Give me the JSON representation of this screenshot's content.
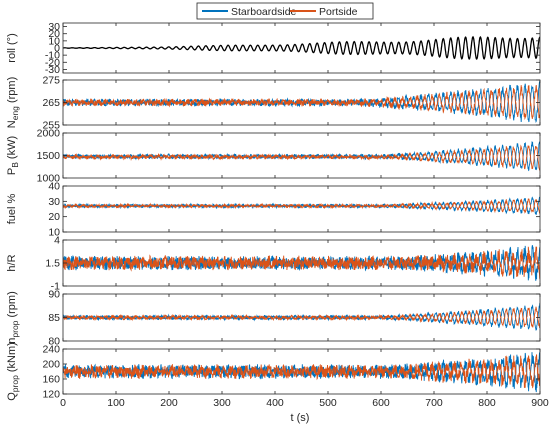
{
  "chart_data": {
    "type": "line",
    "xlabel": "t (s)",
    "xlim": [
      0,
      900
    ],
    "xticks": [
      0,
      100,
      200,
      300,
      400,
      500,
      600,
      700,
      800,
      900
    ],
    "legend": {
      "placement": "top-center",
      "entries": [
        {
          "name": "Starboardside",
          "color": "#0072BD"
        },
        {
          "name": "Portside",
          "color": "#D95319"
        }
      ]
    },
    "panels": [
      {
        "id": "roll",
        "ylabel": {
          "main": "roll (°)",
          "sub": ""
        },
        "ylim": [
          -35,
          35
        ],
        "yticks": [
          -30,
          -20,
          -10,
          0,
          10,
          20,
          30
        ],
        "series": [
          {
            "color": "#000000",
            "mean": 0,
            "amp_start": 0.3,
            "amp_end": 20,
            "grow_from": 0,
            "period_s": 14,
            "noise": 0
          }
        ]
      },
      {
        "id": "neng",
        "ylabel": {
          "main": "N",
          "sub": "eng",
          "after": " (rpm)"
        },
        "ylim": [
          255,
          275
        ],
        "yticks": [
          255,
          265,
          275
        ],
        "series": [
          {
            "color": "#0072BD",
            "mean": 265,
            "amp_start": 0.5,
            "amp_end": 8,
            "grow_from": 550,
            "period_s": 14,
            "noise": 1.2,
            "phase": 0
          },
          {
            "color": "#D95319",
            "mean": 265,
            "amp_start": 0.5,
            "amp_end": 7,
            "grow_from": 550,
            "period_s": 14,
            "noise": 1.2,
            "phase": 3.14
          }
        ]
      },
      {
        "id": "pb",
        "ylabel": {
          "main": "P",
          "sub": "B",
          "after": " (kW)"
        },
        "ylim": [
          1000,
          2000
        ],
        "yticks": [
          1000,
          1500,
          2000
        ],
        "series": [
          {
            "color": "#0072BD",
            "mean": 1480,
            "amp_start": 20,
            "amp_end": 300,
            "grow_from": 600,
            "period_s": 14,
            "noise": 35,
            "phase": 0
          },
          {
            "color": "#D95319",
            "mean": 1470,
            "amp_start": 20,
            "amp_end": 250,
            "grow_from": 600,
            "period_s": 14,
            "noise": 35,
            "phase": 3.14
          }
        ]
      },
      {
        "id": "fuel",
        "ylabel": {
          "main": "fuel %",
          "sub": ""
        },
        "ylim": [
          10,
          40
        ],
        "yticks": [
          10,
          20,
          30,
          40
        ],
        "series": [
          {
            "color": "#0072BD",
            "mean": 27,
            "amp_start": 0.5,
            "amp_end": 5,
            "grow_from": 600,
            "period_s": 14,
            "noise": 0.7,
            "phase": 0
          },
          {
            "color": "#D95319",
            "mean": 27,
            "amp_start": 0.5,
            "amp_end": 4,
            "grow_from": 600,
            "period_s": 14,
            "noise": 0.7,
            "phase": 3.14
          }
        ]
      },
      {
        "id": "hr",
        "ylabel": {
          "main": "h/R",
          "sub": ""
        },
        "ylim": [
          -1,
          4
        ],
        "yticks": [
          -1,
          1.5,
          4
        ],
        "yticklabels": [
          "-1",
          "1.5",
          "4"
        ],
        "series": [
          {
            "color": "#0072BD",
            "mean": 1.5,
            "amp_start": 0.2,
            "amp_end": 1.3,
            "grow_from": 650,
            "period_s": 14,
            "noise": 0.6,
            "phase": 0
          },
          {
            "color": "#D95319",
            "mean": 1.5,
            "amp_start": 0.2,
            "amp_end": 1.1,
            "grow_from": 650,
            "period_s": 14,
            "noise": 0.6,
            "phase": 3.14
          }
        ]
      },
      {
        "id": "nprop",
        "ylabel": {
          "main": "n",
          "sub": "prop",
          "after": " (rpm)"
        },
        "ylim": [
          80,
          90
        ],
        "yticks": [
          80,
          85,
          90
        ],
        "series": [
          {
            "color": "#0072BD",
            "mean": 85,
            "amp_start": 0.2,
            "amp_end": 2.5,
            "grow_from": 600,
            "period_s": 14,
            "noise": 0.3,
            "phase": 0
          },
          {
            "color": "#D95319",
            "mean": 85,
            "amp_start": 0.2,
            "amp_end": 2.0,
            "grow_from": 600,
            "period_s": 14,
            "noise": 0.3,
            "phase": 3.14
          }
        ]
      },
      {
        "id": "qprop",
        "ylabel": {
          "main": "Q",
          "sub": "prop",
          "after": " (kNm)"
        },
        "ylim": [
          120,
          240
        ],
        "yticks": [
          120,
          160,
          200,
          240
        ],
        "series": [
          {
            "color": "#0072BD",
            "mean": 180,
            "amp_start": 6,
            "amp_end": 38,
            "grow_from": 600,
            "period_s": 14,
            "noise": 14,
            "phase": 0
          },
          {
            "color": "#D95319",
            "mean": 180,
            "amp_start": 6,
            "amp_end": 32,
            "grow_from": 600,
            "period_s": 14,
            "noise": 14,
            "phase": 3.14
          }
        ]
      }
    ]
  }
}
